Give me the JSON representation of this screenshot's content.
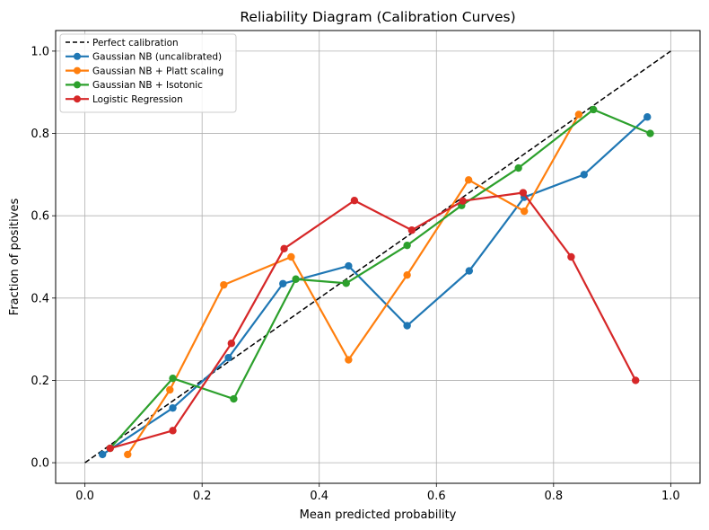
{
  "chart_data": {
    "type": "line",
    "title": "Reliability Diagram (Calibration Curves)",
    "xlabel": "Mean predicted probability",
    "ylabel": "Fraction of positives",
    "xlim": [
      -0.05,
      1.05
    ],
    "ylim": [
      -0.05,
      1.05
    ],
    "xticks": [
      "0.0",
      "0.2",
      "0.4",
      "0.6",
      "0.8",
      "1.0"
    ],
    "yticks": [
      "0.0",
      "0.2",
      "0.4",
      "0.6",
      "0.8",
      "1.0"
    ],
    "grid": true,
    "legend_position": "top-left",
    "series": [
      {
        "name": "Perfect calibration",
        "color": "#000000",
        "style": "dashed",
        "markers": false,
        "x": [
          0.0,
          1.0
        ],
        "y": [
          0.0,
          1.0
        ]
      },
      {
        "name": "Gaussian NB (uncalibrated)",
        "color": "#1f77b4",
        "style": "solid",
        "markers": true,
        "x": [
          0.03,
          0.15,
          0.245,
          0.338,
          0.45,
          0.55,
          0.656,
          0.75,
          0.852,
          0.96
        ],
        "y": [
          0.02,
          0.133,
          0.255,
          0.435,
          0.478,
          0.333,
          0.466,
          0.645,
          0.7,
          0.84
        ]
      },
      {
        "name": "Gaussian NB + Platt scaling",
        "color": "#ff7f0e",
        "style": "solid",
        "markers": true,
        "x": [
          0.073,
          0.145,
          0.237,
          0.352,
          0.45,
          0.55,
          0.655,
          0.75,
          0.843
        ],
        "y": [
          0.02,
          0.177,
          0.432,
          0.5,
          0.25,
          0.456,
          0.687,
          0.611,
          0.846
        ]
      },
      {
        "name": "Gaussian NB + Isotonic",
        "color": "#2ca02c",
        "style": "solid",
        "markers": true,
        "x": [
          0.043,
          0.15,
          0.254,
          0.36,
          0.446,
          0.55,
          0.643,
          0.74,
          0.868,
          0.965
        ],
        "y": [
          0.035,
          0.205,
          0.155,
          0.446,
          0.436,
          0.528,
          0.625,
          0.716,
          0.858,
          0.8
        ]
      },
      {
        "name": "Logistic Regression",
        "color": "#d62728",
        "style": "solid",
        "markers": true,
        "x": [
          0.043,
          0.15,
          0.25,
          0.34,
          0.46,
          0.558,
          0.645,
          0.748,
          0.83,
          0.94
        ],
        "y": [
          0.035,
          0.078,
          0.29,
          0.52,
          0.637,
          0.565,
          0.636,
          0.656,
          0.5,
          0.2
        ]
      }
    ]
  }
}
